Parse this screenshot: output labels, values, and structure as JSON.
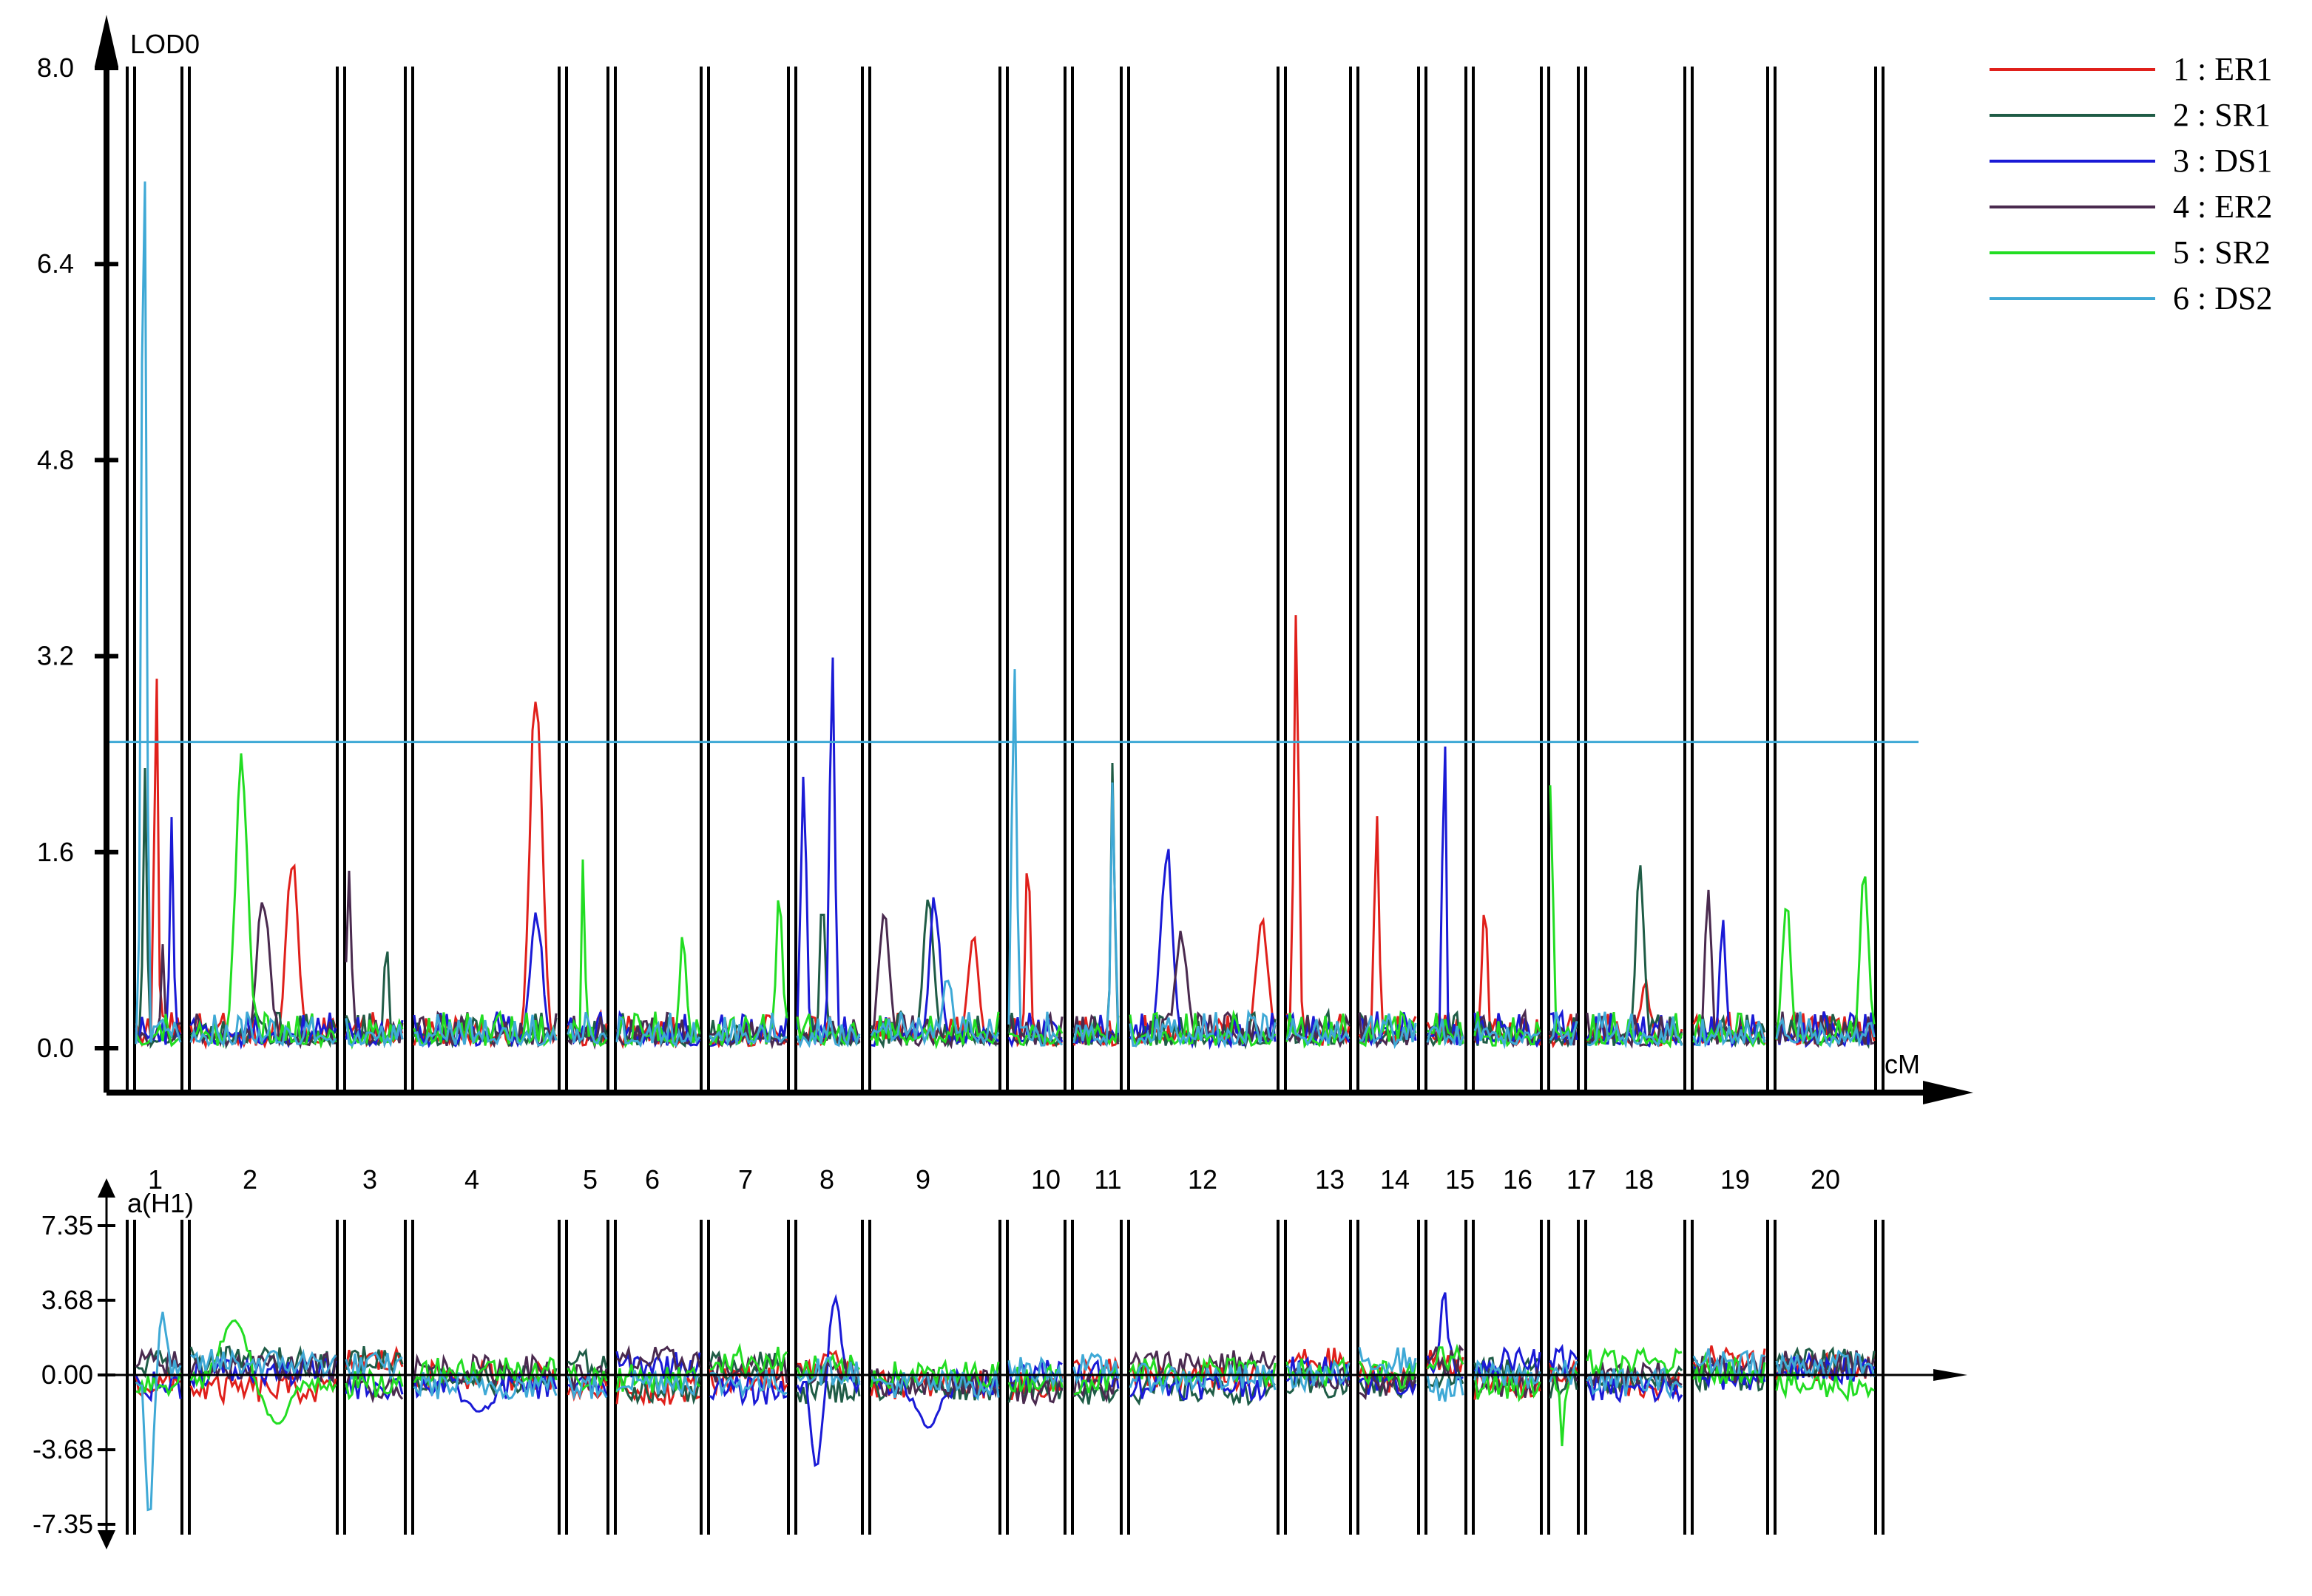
{
  "chart_data": [
    {
      "type": "line",
      "ylabel": "LOD0",
      "xlabel": "cM",
      "ylim": [
        0,
        8.0
      ],
      "yticks": [
        "0.0",
        "1.6",
        "3.2",
        "4.8",
        "6.4",
        "8.0"
      ],
      "threshold": 2.5,
      "threshold_color": "#3fa9d6",
      "chromosomes": [
        "1",
        "2",
        "3",
        "4",
        "5",
        "6",
        "7",
        "8",
        "9",
        "10",
        "11",
        "12",
        "13",
        "14",
        "15",
        "16",
        "17",
        "18",
        "19",
        "20"
      ],
      "series": [
        {
          "name": "1 : ER1",
          "color": "#e0201b",
          "peaks": [
            [
              1,
              0.45,
              3.6
            ],
            [
              2,
              0.7,
              1.6
            ],
            [
              4,
              0.85,
              3.3
            ],
            [
              9,
              0.8,
              1.0
            ],
            [
              10,
              0.35,
              1.8
            ],
            [
              12,
              0.9,
              1.1
            ],
            [
              13,
              0.15,
              3.6
            ],
            [
              14,
              0.3,
              1.95
            ],
            [
              16,
              0.15,
              1.3
            ],
            [
              18,
              0.6,
              0.6
            ]
          ]
        },
        {
          "name": "2 : SR1",
          "color": "#1f5c46",
          "peaks": [
            [
              1,
              0.2,
              2.6
            ],
            [
              3,
              0.7,
              0.9
            ],
            [
              8,
              0.4,
              1.4
            ],
            [
              9,
              0.45,
              1.3
            ],
            [
              11,
              0.85,
              2.5
            ],
            [
              18,
              0.55,
              1.6
            ]
          ]
        },
        {
          "name": "3 : DS1",
          "color": "#1a1ad6",
          "peaks": [
            [
              1,
              0.8,
              2.2
            ],
            [
              4,
              0.85,
              1.2
            ],
            [
              8,
              0.1,
              2.6
            ],
            [
              8,
              0.55,
              3.3
            ],
            [
              9,
              0.5,
              1.3
            ],
            [
              12,
              0.25,
              1.7
            ],
            [
              15,
              0.45,
              3.4
            ],
            [
              19,
              0.4,
              1.2
            ]
          ]
        },
        {
          "name": "4 : ER2",
          "color": "#4a2a4f",
          "peaks": [
            [
              1,
              0.6,
              0.9
            ],
            [
              2,
              0.5,
              1.35
            ],
            [
              3,
              0.05,
              1.45
            ],
            [
              9,
              0.1,
              1.2
            ],
            [
              12,
              0.35,
              1.0
            ],
            [
              19,
              0.2,
              1.5
            ]
          ]
        },
        {
          "name": "5 : SR2",
          "color": "#22dd22",
          "peaks": [
            [
              2,
              0.35,
              2.6
            ],
            [
              5,
              0.4,
              1.65
            ],
            [
              6,
              0.8,
              1.0
            ],
            [
              7,
              0.9,
              1.3
            ],
            [
              17,
              0.05,
              3.5
            ],
            [
              17,
              0.02,
              2.6
            ],
            [
              20,
              0.1,
              1.3
            ],
            [
              20,
              0.9,
              1.55
            ]
          ]
        },
        {
          "name": "6 : DS2",
          "color": "#3fa9d6",
          "peaks": [
            [
              1,
              0.2,
              7.6
            ],
            [
              1,
              0.15,
              6.5
            ],
            [
              10,
              0.1,
              3.4
            ],
            [
              11,
              0.85,
              2.4
            ],
            [
              9,
              0.6,
              0.6
            ]
          ]
        }
      ]
    },
    {
      "type": "line",
      "ylabel": "a(H1)",
      "ylim": [
        -7.35,
        7.35
      ],
      "yticks": [
        "7.35",
        "3.68",
        "0.00",
        "-3.68",
        "-7.35"
      ],
      "effects": [
        {
          "series": "3 : DS1",
          "chr": 4,
          "value": -1.8
        },
        {
          "series": "3 : DS1",
          "chr": 8,
          "value": -4.6
        },
        {
          "series": "3 : DS1",
          "chr": 8,
          "value": 3.8
        },
        {
          "series": "3 : DS1",
          "chr": 9,
          "value": -2.6
        },
        {
          "series": "3 : DS1",
          "chr": 15,
          "value": 4.3
        },
        {
          "series": "6 : DS2",
          "chr": 1,
          "value": -7.2
        },
        {
          "series": "6 : DS2",
          "chr": 1,
          "value": 3.1
        },
        {
          "series": "5 : SR2",
          "chr": 2,
          "value": 2.7
        },
        {
          "series": "5 : SR2",
          "chr": 2,
          "value": -2.4
        },
        {
          "series": "5 : SR2",
          "chr": 17,
          "value": -3.5
        }
      ]
    }
  ]
}
